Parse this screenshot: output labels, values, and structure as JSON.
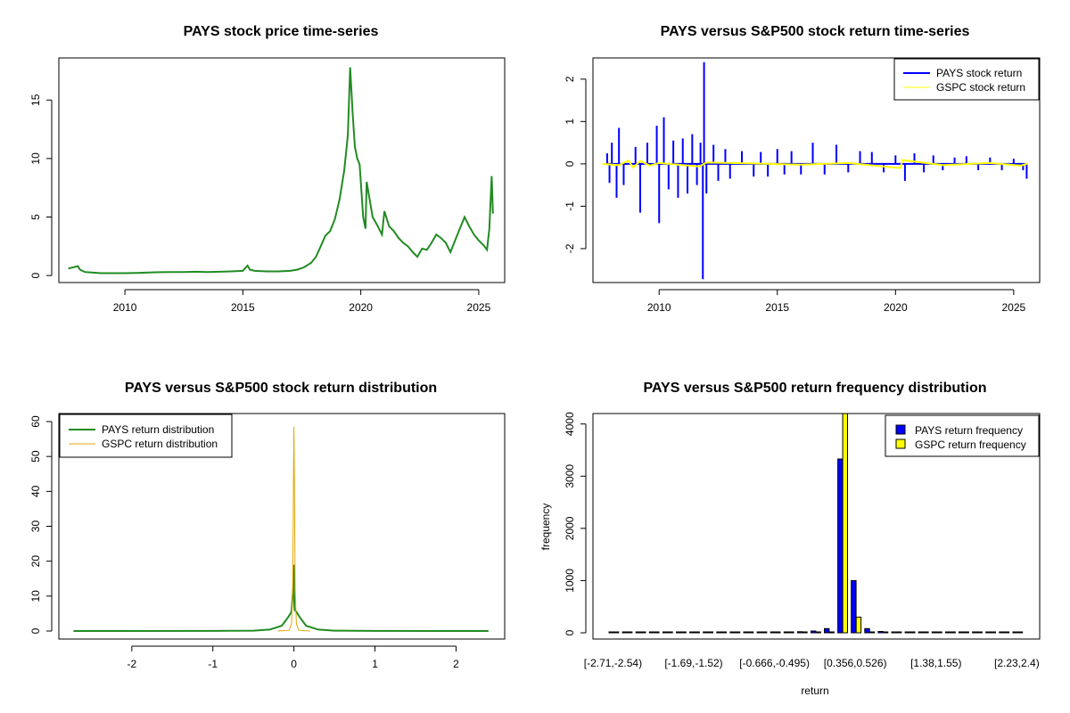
{
  "colors": {
    "price": "#228B22",
    "pays_return": "#0000FF",
    "gspc_return": "#FFFF00",
    "pays_density": "#228B22",
    "gspc_density": "#E5A500",
    "pays_bar": "#0000FF",
    "gspc_bar": "#FFFF00"
  },
  "chart_data": [
    {
      "id": "price",
      "type": "line",
      "title": "PAYS stock price time-series",
      "xlabel": "",
      "ylabel": "",
      "xlim": [
        2007.2,
        2026.1
      ],
      "ylim": [
        -0.6,
        18.6
      ],
      "xticks": [
        2010,
        2015,
        2020,
        2025
      ],
      "yticks": [
        0,
        5,
        10,
        15
      ],
      "grid": false,
      "series": [
        {
          "x": [
            2007.6,
            2008.0,
            2008.1,
            2008.3,
            2008.6,
            2009.0,
            2009.5,
            2010.0,
            2010.5,
            2011.0,
            2011.5,
            2012.0,
            2012.5,
            2013.0,
            2013.5,
            2014.0,
            2014.5,
            2015.0,
            2015.2,
            2015.3,
            2015.5,
            2016.0,
            2016.5,
            2017.0,
            2017.3,
            2017.6,
            2017.9,
            2018.1,
            2018.3,
            2018.5,
            2018.7,
            2018.9,
            2019.1,
            2019.3,
            2019.45,
            2019.55,
            2019.65,
            2019.75,
            2019.85,
            2019.95,
            2020.1,
            2020.2,
            2020.25,
            2020.35,
            2020.5,
            2020.7,
            2020.9,
            2021.0,
            2021.2,
            2021.4,
            2021.6,
            2021.8,
            2022.0,
            2022.2,
            2022.4,
            2022.6,
            2022.8,
            2023.0,
            2023.2,
            2023.4,
            2023.6,
            2023.8,
            2024.0,
            2024.2,
            2024.4,
            2024.6,
            2024.8,
            2025.0,
            2025.2,
            2025.35,
            2025.45,
            2025.55,
            2025.6
          ],
          "y": [
            0.6,
            0.8,
            0.5,
            0.3,
            0.25,
            0.2,
            0.2,
            0.2,
            0.22,
            0.25,
            0.28,
            0.3,
            0.3,
            0.32,
            0.3,
            0.32,
            0.35,
            0.4,
            0.85,
            0.5,
            0.4,
            0.35,
            0.35,
            0.4,
            0.5,
            0.7,
            1.1,
            1.6,
            2.5,
            3.4,
            3.8,
            4.8,
            6.5,
            9,
            12,
            17.8,
            14,
            11,
            10,
            9.5,
            5,
            4,
            8,
            6.8,
            5,
            4.3,
            3.5,
            5.5,
            4.2,
            3.8,
            3.2,
            2.8,
            2.5,
            2.0,
            1.6,
            2.3,
            2.2,
            2.8,
            3.5,
            3.2,
            2.8,
            2.0,
            3.0,
            4.0,
            5.0,
            4.2,
            3.5,
            3.0,
            2.6,
            2.2,
            4.0,
            8.5,
            5.3
          ]
        }
      ]
    },
    {
      "id": "returns",
      "type": "line",
      "title": "PAYS versus S&P500 stock return time-series",
      "xlabel": "",
      "ylabel": "",
      "xlim": [
        2007.2,
        2026.1
      ],
      "ylim": [
        -2.8,
        2.5
      ],
      "xticks": [
        2010,
        2015,
        2020,
        2025
      ],
      "yticks": [
        -2,
        -1,
        0,
        1,
        2
      ],
      "grid": false,
      "legend_position": "top-right",
      "series": [
        {
          "name": "PAYS stock return",
          "x": [
            2007.8,
            2007.9,
            2008.0,
            2008.2,
            2008.3,
            2008.5,
            2009.0,
            2009.2,
            2009.5,
            2009.9,
            2010.0,
            2010.2,
            2010.4,
            2010.6,
            2010.8,
            2011.0,
            2011.2,
            2011.4,
            2011.6,
            2011.75,
            2011.85,
            2011.9,
            2012.0,
            2012.3,
            2012.5,
            2012.8,
            2013.0,
            2013.5,
            2014.0,
            2014.3,
            2014.6,
            2015.0,
            2015.3,
            2015.6,
            2016.0,
            2016.5,
            2017.0,
            2017.5,
            2018.0,
            2018.5,
            2019.0,
            2019.5,
            2020.0,
            2020.4,
            2020.8,
            2021.2,
            2021.6,
            2022.0,
            2022.5,
            2023.0,
            2023.5,
            2024.0,
            2024.5,
            2025.0,
            2025.4,
            2025.55
          ],
          "y": [
            0.25,
            -0.45,
            0.5,
            -0.8,
            0.85,
            -0.5,
            0.4,
            -1.15,
            0.5,
            0.9,
            -1.4,
            1.1,
            -0.6,
            0.55,
            -0.8,
            0.6,
            -0.7,
            0.7,
            -0.5,
            0.5,
            -2.72,
            2.4,
            -0.7,
            0.45,
            -0.4,
            0.35,
            -0.35,
            0.3,
            -0.3,
            0.28,
            -0.3,
            0.35,
            -0.25,
            0.3,
            -0.25,
            0.5,
            -0.25,
            0.45,
            -0.2,
            0.3,
            0.28,
            -0.2,
            0.2,
            -0.4,
            0.25,
            -0.2,
            0.2,
            -0.15,
            0.15,
            0.18,
            -0.15,
            0.15,
            -0.15,
            0.12,
            -0.15,
            -0.35
          ]
        },
        {
          "name": "GSPC stock return",
          "x": [
            2007.6,
            2008.3,
            2008.7,
            2008.9,
            2009.2,
            2009.6,
            2010.0,
            2011.0,
            2011.7,
            2012.0,
            2014.0,
            2016.0,
            2018.0,
            2020.2,
            2020.3,
            2022.0,
            2024.0,
            2025.3,
            2025.6
          ],
          "y": [
            0,
            -0.03,
            0.08,
            -0.09,
            0.07,
            -0.04,
            0.02,
            -0.03,
            -0.06,
            0.03,
            0.01,
            -0.02,
            0.02,
            -0.1,
            0.09,
            -0.03,
            0.02,
            -0.04,
            0.01
          ]
        }
      ]
    },
    {
      "id": "density",
      "type": "line",
      "title": "PAYS versus S&P500 stock return distribution",
      "xlabel": "",
      "ylabel": "",
      "xlim": [
        -2.9,
        2.6
      ],
      "ylim": [
        -2.3,
        62.3
      ],
      "xticks": [
        -2,
        -1,
        0,
        1,
        2
      ],
      "yticks": [
        0,
        10,
        20,
        30,
        40,
        50,
        60
      ],
      "grid": false,
      "legend_position": "top-left",
      "series": [
        {
          "name": "PAYS return distribution",
          "x": [
            -2.72,
            -1.0,
            -0.5,
            -0.3,
            -0.15,
            -0.07,
            -0.03,
            -0.01,
            0.0,
            0.005,
            0.01,
            0.03,
            0.07,
            0.15,
            0.3,
            0.5,
            1.0,
            2.4
          ],
          "y": [
            0,
            0.02,
            0.1,
            0.4,
            1.5,
            4,
            5.5,
            12,
            19,
            8,
            6,
            5.5,
            4,
            1.5,
            0.4,
            0.1,
            0.02,
            0
          ]
        },
        {
          "name": "GSPC return distribution",
          "x": [
            -0.2,
            -0.06,
            -0.03,
            -0.015,
            -0.005,
            0.0,
            0.005,
            0.015,
            0.03,
            0.06,
            0.2
          ],
          "y": [
            0,
            0.2,
            2,
            12,
            45,
            58.5,
            45,
            12,
            2,
            0.2,
            0
          ]
        }
      ]
    },
    {
      "id": "frequency",
      "type": "bar",
      "title": "PAYS versus S&P500 return frequency distribution",
      "xlabel": "return",
      "ylabel": "frequency",
      "ylim": [
        0,
        4200
      ],
      "yticks": [
        0,
        1000,
        2000,
        3000,
        4000
      ],
      "grid": false,
      "legend_position": "top-right",
      "categories": [
        "[-2.71,-2.54)",
        "",
        "",
        "",
        "",
        "",
        "[-1.69,-1.52)",
        "",
        "",
        "",
        "",
        "",
        "[-0.666,-0.495)",
        "",
        "",
        "",
        "",
        "",
        "[0.356,0.526)",
        "",
        "",
        "",
        "",
        "",
        "[1.38,1.55)",
        "",
        "",
        "",
        "",
        "",
        "[2.23,2.4)"
      ],
      "tick_categories": [
        "[-2.71,-2.54)",
        "[-1.69,-1.52)",
        "[-0.666,-0.495)",
        "[0.356,0.526)",
        "[1.38,1.55)",
        "[2.23,2.4)"
      ],
      "series": [
        {
          "name": "PAYS return frequency",
          "values": [
            1,
            0,
            0,
            0,
            0,
            0,
            0,
            0,
            0,
            0,
            0,
            2,
            5,
            10,
            20,
            35,
            80,
            3330,
            1000,
            80,
            25,
            10,
            5,
            2,
            1,
            0,
            0,
            0,
            0,
            0,
            1
          ]
        },
        {
          "name": "GSPC return frequency",
          "values": [
            0,
            0,
            0,
            0,
            0,
            0,
            0,
            0,
            0,
            0,
            0,
            0,
            0,
            0,
            0,
            0,
            0,
            4200,
            300,
            0,
            0,
            0,
            0,
            0,
            0,
            0,
            0,
            0,
            0,
            0,
            0
          ]
        }
      ]
    }
  ]
}
